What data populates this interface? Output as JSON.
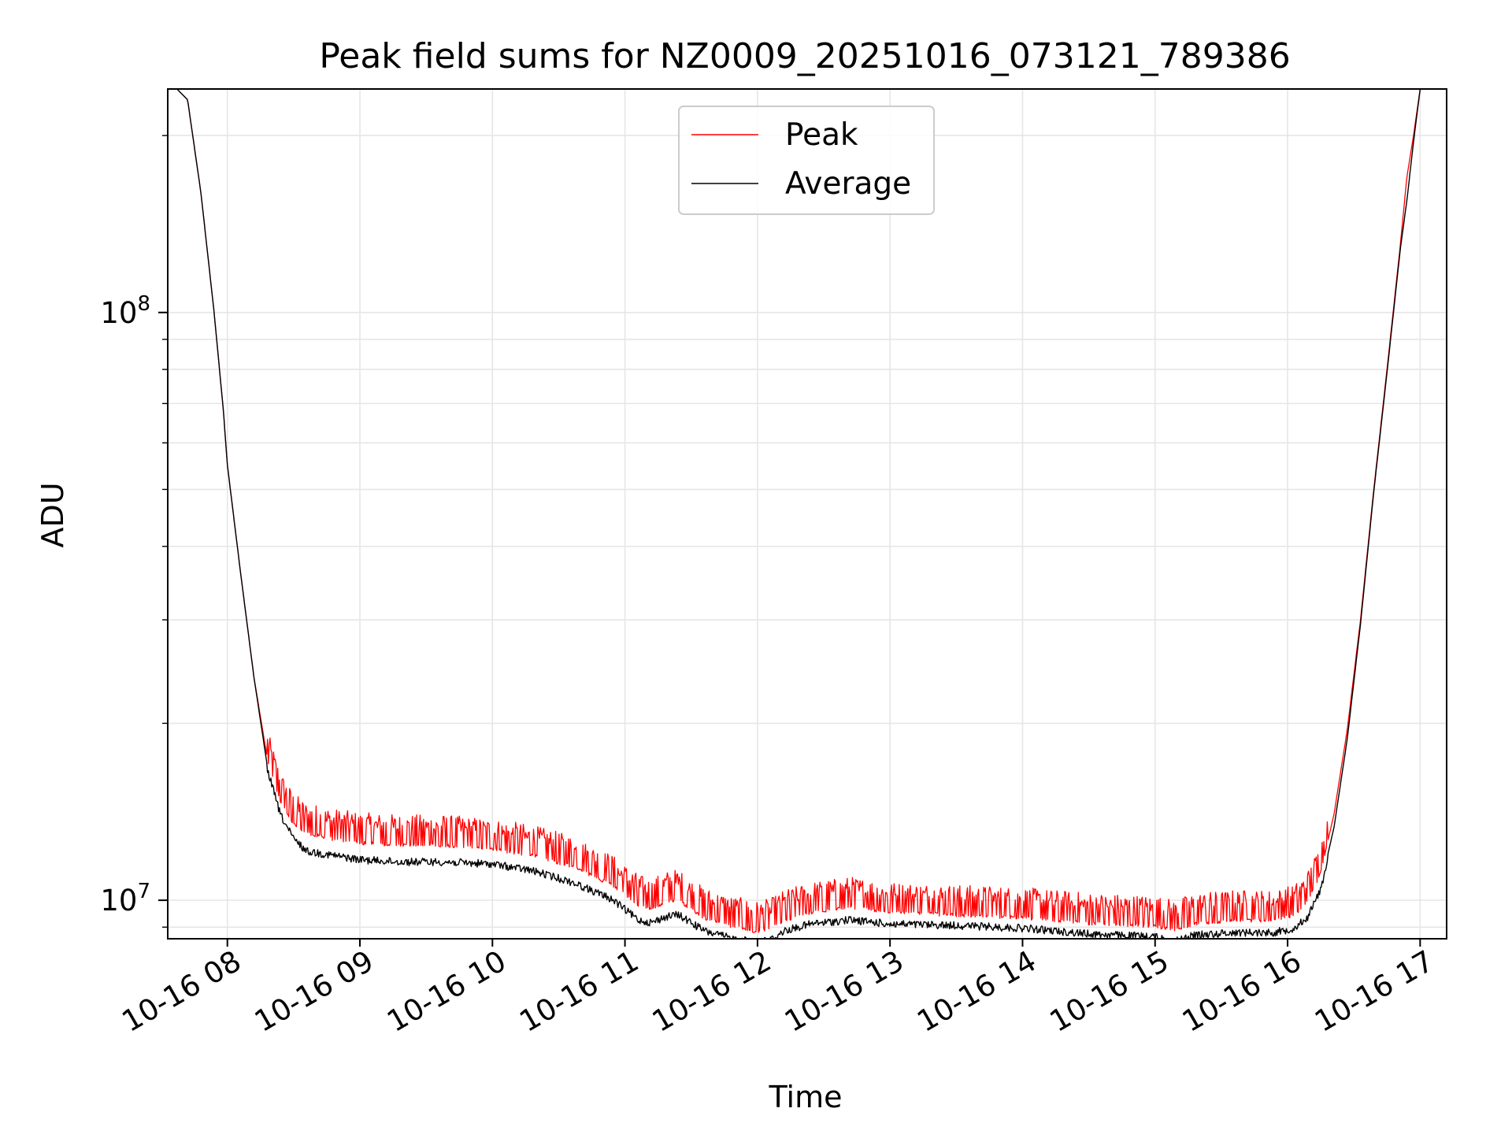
{
  "chart_data": {
    "type": "line",
    "title": "Peak field sums for NZ0009_20251016_073121_789386",
    "xlabel": "Time",
    "ylabel": "ADU",
    "yscale": "log",
    "ylim": [
      8600000,
      240000000
    ],
    "xlim": [
      7.55,
      17.2
    ],
    "x_unit": "hours on 2025-10-16",
    "x_ticks": [
      {
        "value": 8,
        "label": "10-16 08"
      },
      {
        "value": 9,
        "label": "10-16 09"
      },
      {
        "value": 10,
        "label": "10-16 10"
      },
      {
        "value": 11,
        "label": "10-16 11"
      },
      {
        "value": 12,
        "label": "10-16 12"
      },
      {
        "value": 13,
        "label": "10-16 13"
      },
      {
        "value": 14,
        "label": "10-16 14"
      },
      {
        "value": 15,
        "label": "10-16 15"
      },
      {
        "value": 16,
        "label": "10-16 16"
      },
      {
        "value": 17,
        "label": "10-16 17"
      }
    ],
    "y_major_ticks": [
      {
        "value": 10000000,
        "base": "10",
        "exp": "7"
      },
      {
        "value": 100000000,
        "base": "10",
        "exp": "8"
      }
    ],
    "y_minor_ticks": [
      9000000,
      20000000,
      30000000,
      40000000,
      50000000,
      60000000,
      70000000,
      80000000,
      90000000,
      200000000
    ],
    "grid": true,
    "legend_position": "top-center",
    "series": [
      {
        "name": "Peak",
        "color": "#ff0000",
        "noise_amplitude": 0.12,
        "x": [
          7.55,
          7.62,
          7.7,
          7.8,
          7.9,
          7.97,
          8.0,
          8.1,
          8.2,
          8.3,
          8.4,
          8.5,
          8.6,
          8.8,
          9.0,
          9.3,
          9.6,
          10.0,
          10.3,
          10.6,
          10.9,
          11.1,
          11.2,
          11.3,
          11.4,
          11.5,
          11.6,
          11.8,
          12.0,
          12.1,
          12.2,
          12.4,
          12.7,
          13.0,
          13.5,
          14.0,
          14.5,
          15.0,
          15.15,
          15.3,
          15.6,
          15.9,
          16.05,
          16.15,
          16.25,
          16.35,
          16.45,
          16.55,
          16.65,
          16.75,
          16.85,
          16.9,
          16.95,
          17.0,
          17.2
        ],
        "y": [
          240000000,
          240000000,
          230000000,
          160000000,
          100000000,
          68000000,
          55000000,
          36000000,
          24000000,
          17500000,
          14800000,
          13600000,
          13100000,
          12800000,
          12600000,
          12500000,
          12500000,
          12300000,
          12000000,
          11500000,
          10700000,
          9900000,
          9700000,
          10000000,
          10100000,
          9700000,
          9400000,
          9100000,
          8900000,
          9000000,
          9300000,
          9600000,
          9800000,
          9600000,
          9500000,
          9400000,
          9200000,
          9100000,
          8950000,
          9200000,
          9300000,
          9300000,
          9500000,
          10000000,
          11200000,
          14000000,
          19500000,
          30000000,
          50000000,
          80000000,
          130000000,
          170000000,
          200000000,
          240000000,
          240000000
        ]
      },
      {
        "name": "Average",
        "color": "#000000",
        "noise_amplitude": 0.03,
        "x": [
          7.55,
          7.62,
          7.7,
          7.8,
          7.9,
          7.97,
          8.0,
          8.1,
          8.2,
          8.3,
          8.4,
          8.5,
          8.6,
          8.8,
          9.0,
          9.3,
          9.6,
          10.0,
          10.3,
          10.6,
          10.9,
          11.1,
          11.2,
          11.3,
          11.4,
          11.5,
          11.6,
          11.8,
          12.0,
          12.1,
          12.2,
          12.4,
          12.7,
          13.0,
          13.5,
          14.0,
          14.5,
          15.0,
          15.15,
          15.3,
          15.6,
          15.9,
          16.05,
          16.15,
          16.25,
          16.35,
          16.45,
          16.55,
          16.65,
          16.75,
          16.85,
          16.9,
          16.95,
          17.0,
          17.2
        ],
        "y": [
          240000000,
          240000000,
          230000000,
          160000000,
          100000000,
          68000000,
          55000000,
          36000000,
          24000000,
          17000000,
          14200000,
          12900000,
          12300000,
          12100000,
          11900000,
          11800000,
          11800000,
          11700000,
          11400000,
          10900000,
          10200000,
          9400000,
          9300000,
          9500000,
          9600000,
          9300000,
          9000000,
          8750000,
          8600000,
          8700000,
          9000000,
          9250000,
          9400000,
          9250000,
          9200000,
          9100000,
          8900000,
          8800000,
          8650000,
          8850000,
          8950000,
          8950000,
          9100000,
          9500000,
          10600000,
          13300000,
          18800000,
          29500000,
          49500000,
          79000000,
          128000000,
          155000000,
          195000000,
          240000000,
          240000000
        ]
      }
    ]
  }
}
